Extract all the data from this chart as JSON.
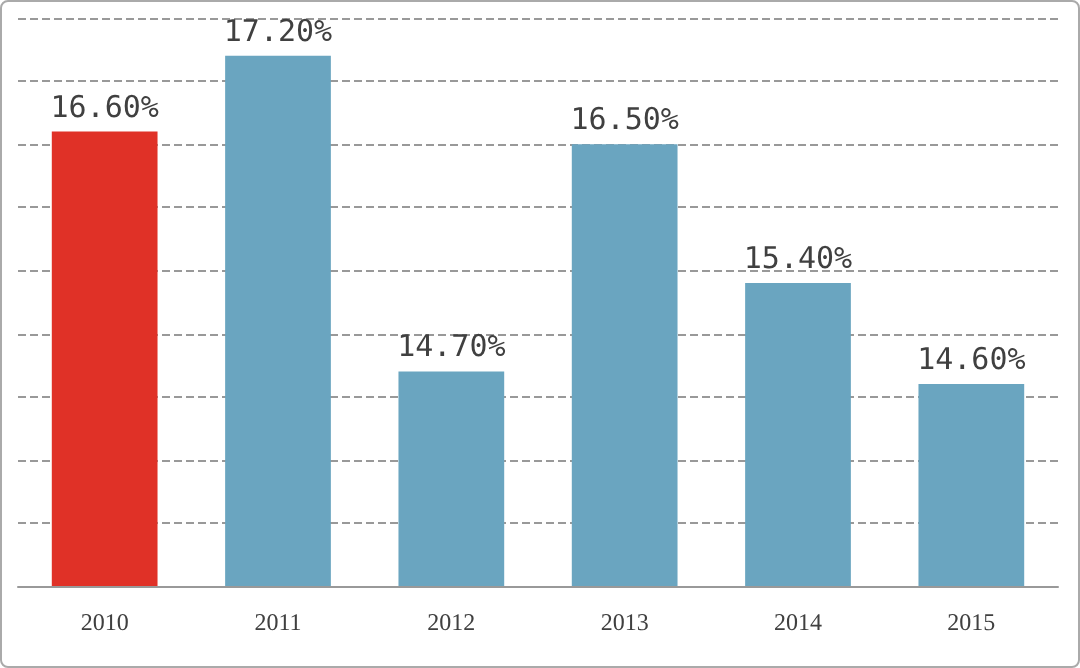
{
  "chart_data": {
    "type": "bar",
    "categories": [
      "2010",
      "2011",
      "2012",
      "2013",
      "2014",
      "2015"
    ],
    "values": [
      16.6,
      17.2,
      14.7,
      16.5,
      15.4,
      14.6
    ],
    "colors": [
      "#e03127",
      "#6aa5c0",
      "#6aa5c0",
      "#6aa5c0",
      "#6aa5c0",
      "#6aa5c0"
    ],
    "value_labels": [
      "16.60%",
      "17.20%",
      "14.70%",
      "16.50%",
      "15.40%",
      "14.60%"
    ],
    "ylim": [
      13,
      17.5
    ],
    "yticks": [
      {
        "value": 13,
        "label": null
      },
      {
        "value": 13.5,
        "label": null
      },
      {
        "value": 14,
        "label": null
      },
      {
        "value": 14.5,
        "label": null
      },
      {
        "value": 15,
        "label": null
      },
      {
        "value": 15.5,
        "label": null
      },
      {
        "value": 16,
        "label": null
      },
      {
        "value": 16.5,
        "label": null
      },
      {
        "value": 17,
        "label": null
      },
      {
        "value": 17.5,
        "label": null
      }
    ],
    "grid": "y",
    "tick_labels": "x"
  }
}
